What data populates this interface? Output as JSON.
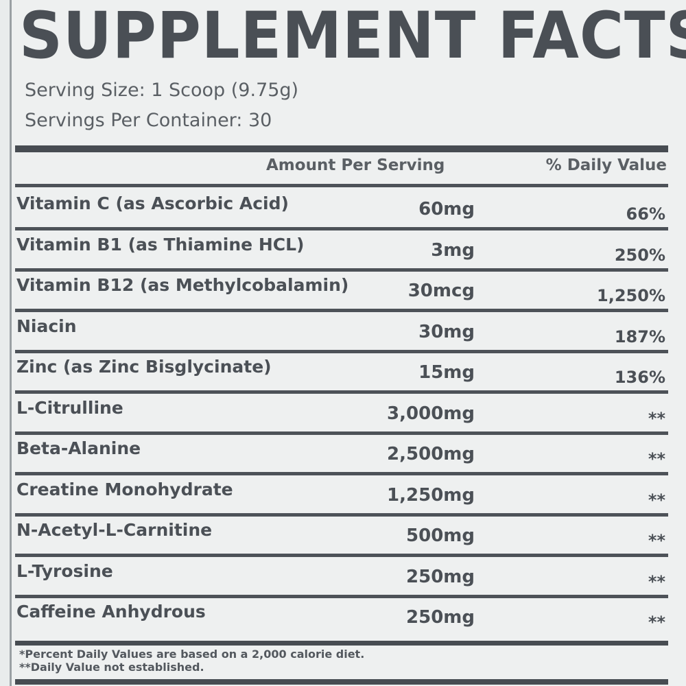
{
  "title": "SUPPLEMENT FACTS",
  "serving_size": "Serving Size: 1 Scoop (9.75g)",
  "servings_per_container": "Servings Per Container: 30",
  "header": {
    "amount": "Amount Per Serving",
    "daily_value": "% Daily Value"
  },
  "rows": [
    {
      "name": "Vitamin C (as Ascorbic Acid)",
      "amount": "60mg",
      "dv": "66%"
    },
    {
      "name": "Vitamin B1 (as Thiamine HCL)",
      "amount": "3mg",
      "dv": "250%"
    },
    {
      "name": "Vitamin B12 (as Methylcobalamin)",
      "amount": "30mcg",
      "dv": "1,250%"
    },
    {
      "name": "Niacin",
      "amount": "30mg",
      "dv": "187%"
    },
    {
      "name": "Zinc (as Zinc Bisglycinate)",
      "amount": "15mg",
      "dv": "136%"
    },
    {
      "name": "L-Citrulline",
      "amount": "3,000mg",
      "dv": "**"
    },
    {
      "name": "Beta-Alanine",
      "amount": "2,500mg",
      "dv": "**"
    },
    {
      "name": "Creatine Monohydrate",
      "amount": "1,250mg",
      "dv": "**"
    },
    {
      "name": "N-Acetyl-L-Carnitine",
      "amount": "500mg",
      "dv": "**"
    },
    {
      "name": "L-Tyrosine",
      "amount": "250mg",
      "dv": "**"
    },
    {
      "name": "Caffeine Anhydrous",
      "amount": "250mg",
      "dv": "**"
    }
  ],
  "footnotes": [
    "*Percent Daily Values are based on a 2,000 calorie diet.",
    "**Daily Value not established."
  ]
}
